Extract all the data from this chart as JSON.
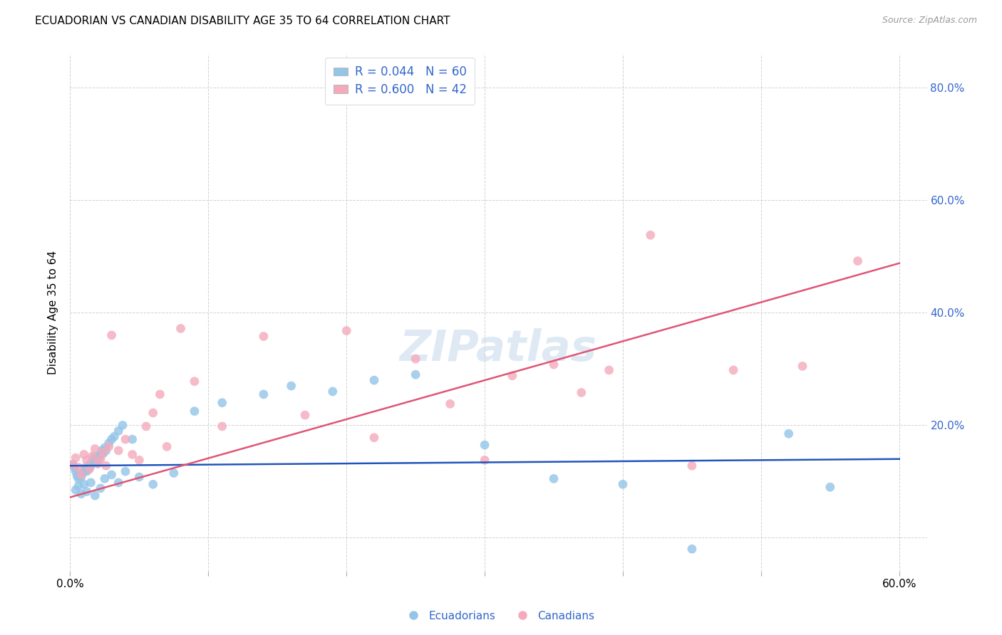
{
  "title": "ECUADORIAN VS CANADIAN DISABILITY AGE 35 TO 64 CORRELATION CHART",
  "source": "Source: ZipAtlas.com",
  "ylabel": "Disability Age 35 to 64",
  "xlim": [
    0.0,
    0.62
  ],
  "ylim": [
    -0.06,
    0.86
  ],
  "x_ticks": [
    0.0,
    0.1,
    0.2,
    0.3,
    0.4,
    0.5,
    0.6
  ],
  "x_tick_labels": [
    "0.0%",
    "",
    "",
    "",
    "",
    "",
    "60.0%"
  ],
  "y_ticks": [
    0.0,
    0.2,
    0.4,
    0.6,
    0.8
  ],
  "y_tick_labels_right": [
    "",
    "20.0%",
    "40.0%",
    "60.0%",
    "80.0%"
  ],
  "blue_color": "#92C5E8",
  "pink_color": "#F4AABC",
  "blue_line_color": "#2255BB",
  "pink_line_color": "#E05575",
  "watermark": "ZIPatlas",
  "blue_scatter_x": [
    0.002,
    0.003,
    0.004,
    0.005,
    0.006,
    0.007,
    0.008,
    0.009,
    0.01,
    0.011,
    0.012,
    0.013,
    0.014,
    0.015,
    0.016,
    0.017,
    0.018,
    0.019,
    0.02,
    0.021,
    0.022,
    0.023,
    0.024,
    0.025,
    0.026,
    0.028,
    0.03,
    0.032,
    0.035,
    0.038,
    0.004,
    0.006,
    0.008,
    0.01,
    0.012,
    0.015,
    0.018,
    0.022,
    0.025,
    0.03,
    0.035,
    0.04,
    0.05,
    0.06,
    0.075,
    0.09,
    0.11,
    0.14,
    0.16,
    0.19,
    0.22,
    0.25,
    0.3,
    0.35,
    0.4,
    0.45,
    0.52,
    0.55,
    0.02,
    0.045
  ],
  "blue_scatter_y": [
    0.13,
    0.125,
    0.118,
    0.11,
    0.105,
    0.112,
    0.108,
    0.115,
    0.12,
    0.125,
    0.118,
    0.122,
    0.13,
    0.128,
    0.135,
    0.14,
    0.145,
    0.138,
    0.132,
    0.142,
    0.148,
    0.155,
    0.15,
    0.16,
    0.155,
    0.168,
    0.175,
    0.18,
    0.19,
    0.2,
    0.085,
    0.092,
    0.078,
    0.095,
    0.082,
    0.098,
    0.075,
    0.088,
    0.105,
    0.112,
    0.098,
    0.118,
    0.108,
    0.095,
    0.115,
    0.225,
    0.24,
    0.255,
    0.27,
    0.26,
    0.28,
    0.29,
    0.165,
    0.105,
    0.095,
    -0.02,
    0.185,
    0.09,
    0.14,
    0.175
  ],
  "pink_scatter_x": [
    0.002,
    0.004,
    0.006,
    0.008,
    0.01,
    0.012,
    0.014,
    0.016,
    0.018,
    0.02,
    0.022,
    0.024,
    0.026,
    0.028,
    0.03,
    0.035,
    0.04,
    0.045,
    0.05,
    0.055,
    0.06,
    0.065,
    0.07,
    0.08,
    0.09,
    0.11,
    0.14,
    0.17,
    0.2,
    0.22,
    0.25,
    0.275,
    0.3,
    0.32,
    0.35,
    0.37,
    0.39,
    0.42,
    0.45,
    0.48,
    0.53,
    0.57
  ],
  "pink_scatter_y": [
    0.13,
    0.142,
    0.125,
    0.112,
    0.148,
    0.138,
    0.122,
    0.145,
    0.158,
    0.132,
    0.14,
    0.152,
    0.128,
    0.162,
    0.36,
    0.155,
    0.175,
    0.148,
    0.138,
    0.198,
    0.222,
    0.255,
    0.162,
    0.372,
    0.278,
    0.198,
    0.358,
    0.218,
    0.368,
    0.178,
    0.318,
    0.238,
    0.138,
    0.288,
    0.308,
    0.258,
    0.298,
    0.538,
    0.128,
    0.298,
    0.305,
    0.492
  ],
  "blue_line_x": [
    0.0,
    0.6
  ],
  "blue_line_y": [
    0.128,
    0.14
  ],
  "pink_line_x": [
    0.0,
    0.6
  ],
  "pink_line_y": [
    0.072,
    0.488
  ]
}
